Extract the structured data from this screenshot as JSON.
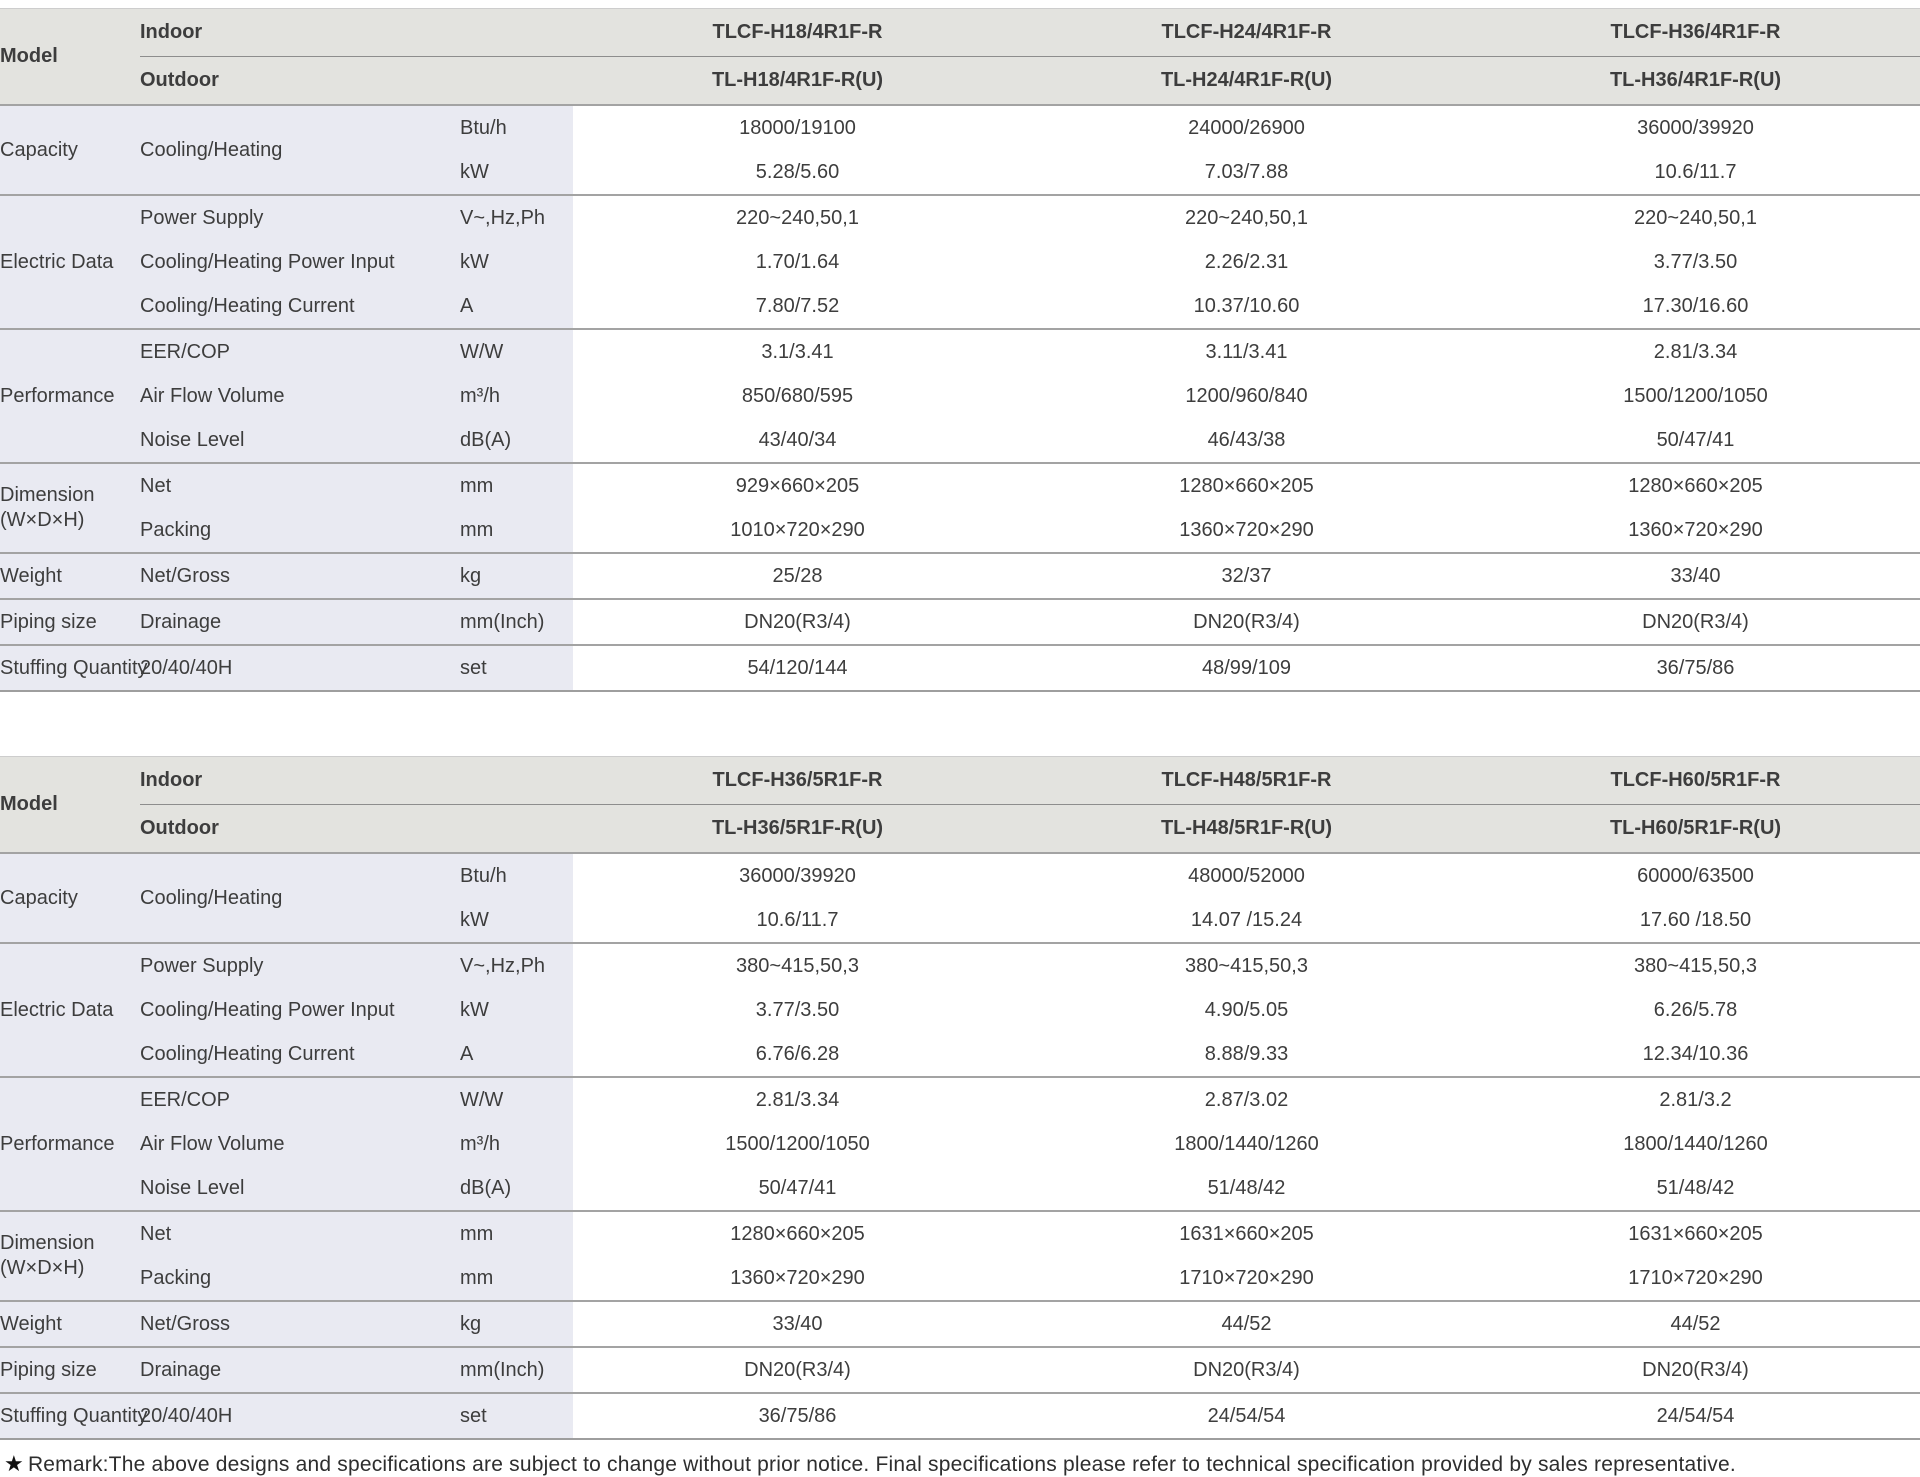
{
  "tables": [
    {
      "model_label": "Model",
      "indoor_label": "Indoor",
      "outdoor_label": "Outdoor",
      "indoor_models": [
        "TLCF-H18/4R1F-R",
        "TLCF-H24/4R1F-R",
        "TLCF-H36/4R1F-R"
      ],
      "outdoor_models": [
        "TL-H18/4R1F-R(U)",
        "TL-H24/4R1F-R(U)",
        "TL-H36/4R1F-R(U)"
      ],
      "labels": {
        "capacity": "Capacity",
        "capacity_sub": "Cooling/Heating",
        "electric": "Electric Data",
        "performance": "Performance",
        "dimension_line1": "Dimension",
        "dimension_line2": "(W×D×H)",
        "weight": "Weight",
        "piping": "Piping size",
        "stuffing": "Stuffing Quantity"
      },
      "rows": [
        {
          "unit": "Btu/h",
          "v": [
            "18000/19100",
            "24000/26900",
            "36000/39920"
          ]
        },
        {
          "unit": "kW",
          "v": [
            "5.28/5.60",
            "7.03/7.88",
            "10.6/11.7"
          ]
        },
        {
          "sub": "Power Supply",
          "unit": "V~,Hz,Ph",
          "v": [
            "220~240,50,1",
            "220~240,50,1",
            "220~240,50,1"
          ]
        },
        {
          "sub": "Cooling/Heating Power Input",
          "unit": "kW",
          "v": [
            "1.70/1.64",
            "2.26/2.31",
            "3.77/3.50"
          ]
        },
        {
          "sub": "Cooling/Heating  Current",
          "unit": "A",
          "v": [
            "7.80/7.52",
            "10.37/10.60",
            "17.30/16.60"
          ]
        },
        {
          "sub": "EER/COP",
          "unit": "W/W",
          "v": [
            "3.1/3.41",
            "3.11/3.41",
            "2.81/3.34"
          ]
        },
        {
          "sub": "Air Flow Volume",
          "unit": "m³/h",
          "v": [
            "850/680/595",
            "1200/960/840",
            "1500/1200/1050"
          ]
        },
        {
          "sub": "Noise Level",
          "unit": "dB(A)",
          "v": [
            "43/40/34",
            "46/43/38",
            "50/47/41"
          ]
        },
        {
          "sub": "Net",
          "unit": "mm",
          "v": [
            "929×660×205",
            "1280×660×205",
            "1280×660×205"
          ]
        },
        {
          "sub": "Packing",
          "unit": "mm",
          "v": [
            "1010×720×290",
            "1360×720×290",
            "1360×720×290"
          ]
        },
        {
          "sub": "Net/Gross",
          "unit": "kg",
          "v": [
            "25/28",
            "32/37",
            "33/40"
          ]
        },
        {
          "sub": "Drainage",
          "unit": "mm(Inch)",
          "v": [
            "DN20(R3/4)",
            "DN20(R3/4)",
            "DN20(R3/4)"
          ]
        },
        {
          "sub": "20/40/40H",
          "unit": "set",
          "v": [
            "54/120/144",
            "48/99/109",
            "36/75/86"
          ]
        }
      ]
    },
    {
      "model_label": "Model",
      "indoor_label": "Indoor",
      "outdoor_label": "Outdoor",
      "indoor_models": [
        "TLCF-H36/5R1F-R",
        "TLCF-H48/5R1F-R",
        "TLCF-H60/5R1F-R"
      ],
      "outdoor_models": [
        "TL-H36/5R1F-R(U)",
        "TL-H48/5R1F-R(U)",
        "TL-H60/5R1F-R(U)"
      ],
      "labels": {
        "capacity": "Capacity",
        "capacity_sub": "Cooling/Heating",
        "electric": "Electric Data",
        "performance": "Performance",
        "dimension_line1": "Dimension",
        "dimension_line2": "(W×D×H)",
        "weight": "Weight",
        "piping": "Piping size",
        "stuffing": "Stuffing Quantity"
      },
      "rows": [
        {
          "unit": "Btu/h",
          "v": [
            "36000/39920",
            "48000/52000",
            "60000/63500"
          ]
        },
        {
          "unit": "kW",
          "v": [
            "10.6/11.7",
            "14.07 /15.24",
            "17.60 /18.50"
          ]
        },
        {
          "sub": "Power Supply",
          "unit": "V~,Hz,Ph",
          "v": [
            "380~415,50,3",
            "380~415,50,3",
            "380~415,50,3"
          ]
        },
        {
          "sub": "Cooling/Heating Power Input",
          "unit": "kW",
          "v": [
            "3.77/3.50",
            "4.90/5.05",
            "6.26/5.78"
          ]
        },
        {
          "sub": "Cooling/Heating  Current",
          "unit": "A",
          "v": [
            "6.76/6.28",
            "8.88/9.33",
            "12.34/10.36"
          ]
        },
        {
          "sub": "EER/COP",
          "unit": "W/W",
          "v": [
            "2.81/3.34",
            "2.87/3.02",
            "2.81/3.2"
          ]
        },
        {
          "sub": "Air Flow Volume",
          "unit": "m³/h",
          "v": [
            "1500/1200/1050",
            "1800/1440/1260",
            "1800/1440/1260"
          ]
        },
        {
          "sub": "Noise Level",
          "unit": "dB(A)",
          "v": [
            "50/47/41",
            "51/48/42",
            "51/48/42"
          ]
        },
        {
          "sub": "Net",
          "unit": "mm",
          "v": [
            "1280×660×205",
            "1631×660×205",
            "1631×660×205"
          ]
        },
        {
          "sub": "Packing",
          "unit": "mm",
          "v": [
            "1360×720×290",
            "1710×720×290",
            "1710×720×290"
          ]
        },
        {
          "sub": "Net/Gross",
          "unit": "kg",
          "v": [
            "33/40",
            "44/52",
            "44/52"
          ]
        },
        {
          "sub": "Drainage",
          "unit": "mm(Inch)",
          "v": [
            "DN20(R3/4)",
            "DN20(R3/4)",
            "DN20(R3/4)"
          ]
        },
        {
          "sub": "20/40/40H",
          "unit": "set",
          "v": [
            "36/75/86",
            "24/54/54",
            "24/54/54"
          ]
        }
      ]
    }
  ],
  "remark": {
    "star": "★",
    "text": "Remark:The above designs and specifications are subject to change without prior notice. Final specifications please refer to technical specification provided by sales representative."
  },
  "colors": {
    "header_bg": "#e3e3df",
    "label_bg": "#e9eaf2",
    "separator": "#a3a3a3",
    "text": "#3d3d3d"
  }
}
